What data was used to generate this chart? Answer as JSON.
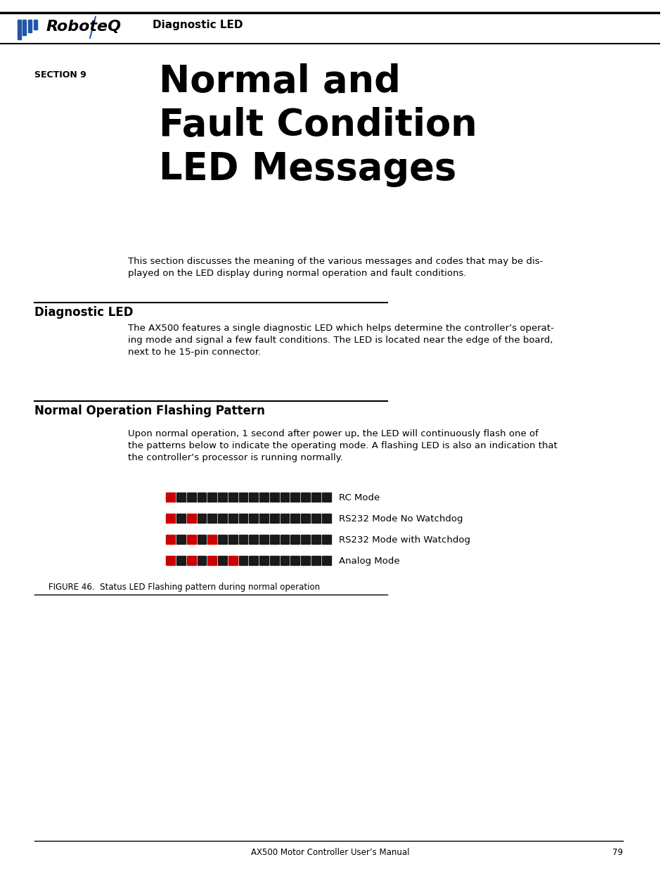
{
  "page_title": "Diagnostic LED",
  "section_label": "SECTION 9",
  "section_title_lines": [
    "Normal and",
    "Fault Condition",
    "LED Messages"
  ],
  "intro_text": "This section discusses the meaning of the various messages and codes that may be dis-\nplayed on the LED display during normal operation and fault conditions.",
  "diag_led_heading": "Diagnostic LED",
  "diag_led_text": "The AX500 features a single diagnostic LED which helps determine the controller’s operat-\ning mode and signal a few fault conditions. The LED is located near the edge of the board,\nnext to he 15-pin connector.",
  "normal_op_heading": "Normal Operation Flashing Pattern",
  "normal_op_text": "Upon normal operation, 1 second after power up, the LED will continuously flash one of\nthe patterns below to indicate the operating mode. A flashing LED is also an indication that\nthe controller’s processor is running normally.",
  "led_patterns": [
    {
      "label": "RC Mode",
      "colors": [
        "R",
        "B",
        "B",
        "B",
        "B",
        "B",
        "B",
        "B",
        "B",
        "B",
        "B",
        "B",
        "B",
        "B",
        "B",
        "B"
      ]
    },
    {
      "label": "RS232 Mode No Watchdog",
      "colors": [
        "R",
        "B",
        "R",
        "B",
        "B",
        "B",
        "B",
        "B",
        "B",
        "B",
        "B",
        "B",
        "B",
        "B",
        "B",
        "B"
      ]
    },
    {
      "label": "RS232 Mode with Watchdog",
      "colors": [
        "R",
        "B",
        "R",
        "B",
        "R",
        "B",
        "B",
        "B",
        "B",
        "B",
        "B",
        "B",
        "B",
        "B",
        "B",
        "B"
      ]
    },
    {
      "label": "Analog Mode",
      "colors": [
        "R",
        "B",
        "R",
        "B",
        "R",
        "B",
        "R",
        "B",
        "B",
        "B",
        "B",
        "B",
        "B",
        "B",
        "B",
        "B"
      ]
    }
  ],
  "figure_caption": "FIGURE 46.  Status LED Flashing pattern during normal operation",
  "footer_text": "AX500 Motor Controller User’s Manual",
  "footer_page": "79",
  "red_color": "#cc0000",
  "black_color": "#1a1a1a",
  "logo_text": "RoboteQ",
  "header_subtext": "Diagnostic LED"
}
